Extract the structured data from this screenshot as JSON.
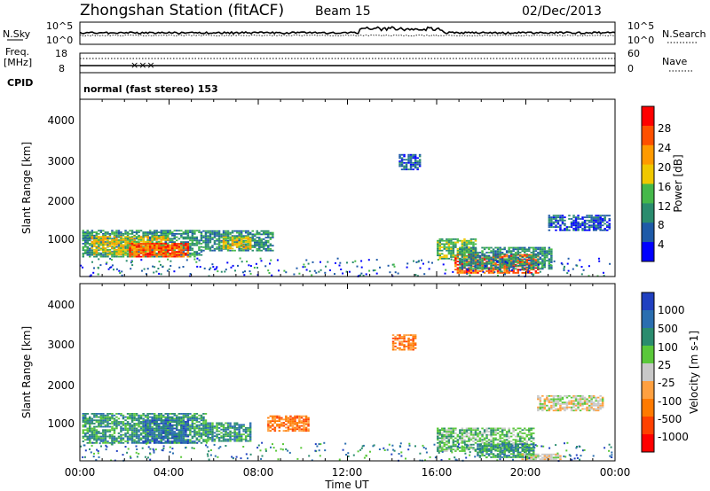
{
  "header": {
    "station": "Zhongshan Station (fitACF)",
    "beam": "Beam 15",
    "date": "02/Dec/2013"
  },
  "noise_panel": {
    "left_label": "N.Sky",
    "left_ticks": [
      "10^5",
      "10^0"
    ],
    "right_label": "N.Search",
    "right_ticks": [
      "10^5",
      "10^0"
    ]
  },
  "freq_panel": {
    "left_label_1": "Freq.",
    "left_label_2": "[MHz]",
    "left_ticks": [
      "18",
      "8"
    ],
    "right_label": "Nave",
    "right_ticks": [
      "60",
      "0"
    ]
  },
  "cpid_panel": {
    "label": "CPID",
    "text": "normal (fast stereo) 153"
  },
  "chart_data": [
    {
      "type": "heatmap",
      "panel": "power",
      "ylabel": "Slant Range [km]",
      "y_ticks": [
        "1000",
        "2000",
        "3000",
        "4000"
      ],
      "ylim": [
        180,
        4550
      ],
      "colorbar_label": "Power [dB]",
      "colorbar_ticks": [
        "4",
        "8",
        "12",
        "16",
        "20",
        "24",
        "28"
      ],
      "colors": [
        "#0000ff",
        "#1e5aa8",
        "#2a8c6e",
        "#45b84a",
        "#f0c800",
        "#ff9a00",
        "#ff5000",
        "#ff0000"
      ],
      "blobs": [
        {
          "t0": 0.1,
          "t1": 5.4,
          "r0": 650,
          "r1": 1300,
          "level": 2
        },
        {
          "t0": 0.5,
          "t1": 4.0,
          "r0": 700,
          "r1": 1150,
          "level": 4
        },
        {
          "t0": 2.2,
          "t1": 4.8,
          "r0": 650,
          "r1": 1000,
          "level": 6
        },
        {
          "t0": 5.5,
          "t1": 8.6,
          "r0": 800,
          "r1": 1300,
          "level": 2
        },
        {
          "t0": 6.4,
          "t1": 7.6,
          "r0": 850,
          "r1": 1150,
          "level": 4
        },
        {
          "t0": 16.0,
          "t1": 17.8,
          "r0": 600,
          "r1": 1100,
          "level": 3
        },
        {
          "t0": 16.8,
          "t1": 20.6,
          "r0": 250,
          "r1": 700,
          "level": 6
        },
        {
          "t0": 17.0,
          "t1": 21.2,
          "r0": 350,
          "r1": 900,
          "level": 2
        },
        {
          "t0": 21.0,
          "t1": 23.8,
          "r0": 1300,
          "r1": 1700,
          "level": 1
        },
        {
          "t0": 14.3,
          "t1": 15.2,
          "r0": 2800,
          "r1": 3200,
          "level": 1
        }
      ]
    },
    {
      "type": "heatmap",
      "panel": "velocity",
      "ylabel": "Slant Range [km]",
      "y_ticks": [
        "1000",
        "2000",
        "3000",
        "4000"
      ],
      "ylim": [
        180,
        4550
      ],
      "colorbar_label": "Velocity [m s-1]",
      "colorbar_ticks": [
        "1000",
        "500",
        "100",
        "25",
        "-25",
        "-100",
        "-500",
        "-1000"
      ],
      "colors": [
        "#2040c0",
        "#2a6eb0",
        "#2a8c6e",
        "#5ac83a",
        "#c8c8c8",
        "#ffa040",
        "#ff7a00",
        "#ff4000",
        "#ff0000"
      ],
      "blobs": [
        {
          "t0": 0.1,
          "t1": 5.6,
          "r0": 600,
          "r1": 1350,
          "level": 2
        },
        {
          "t0": 2.8,
          "t1": 4.8,
          "r0": 600,
          "r1": 1200,
          "level": 1
        },
        {
          "t0": 5.6,
          "t1": 7.6,
          "r0": 650,
          "r1": 1100,
          "level": 2
        },
        {
          "t0": 8.4,
          "t1": 10.2,
          "r0": 900,
          "r1": 1300,
          "level": 6
        },
        {
          "t0": 16.0,
          "t1": 20.4,
          "r0": 400,
          "r1": 1000,
          "level": 3
        },
        {
          "t0": 17.8,
          "t1": 20.4,
          "r0": 250,
          "r1": 600,
          "level": 2
        },
        {
          "t0": 19.8,
          "t1": 21.6,
          "r0": 200,
          "r1": 350,
          "level": 4
        },
        {
          "t0": 14.0,
          "t1": 15.0,
          "r0": 2900,
          "r1": 3300,
          "level": 6
        },
        {
          "t0": 20.5,
          "t1": 23.5,
          "r0": 1400,
          "r1": 1800,
          "level": 4
        }
      ]
    }
  ],
  "x_axis": {
    "ticks": [
      "00:00",
      "04:00",
      "08:00",
      "12:00",
      "16:00",
      "20:00",
      "00:00"
    ],
    "label": "Time UT"
  }
}
